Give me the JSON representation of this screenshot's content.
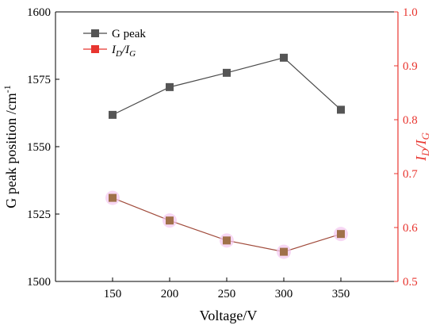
{
  "chart_data": {
    "type": "line",
    "xlabel": "Voltage/V",
    "x": [
      150,
      200,
      250,
      300,
      350
    ],
    "xlim": [
      100,
      400
    ],
    "x_ticks": [
      "150",
      "200",
      "250",
      "300",
      "350"
    ],
    "left_axis": {
      "label": "G peak position /cm",
      "label_superscript": "-1",
      "ylim": [
        1500,
        1600
      ],
      "ticks": [
        "1500",
        "1525",
        "1550",
        "1575",
        "1600"
      ],
      "color": "#000000"
    },
    "right_axis": {
      "label_main": "I",
      "label_sub1": "D",
      "label_sep": "/I",
      "label_sub2": "G",
      "ylim": [
        0.5,
        1.0
      ],
      "ticks": [
        "0.5",
        "0.6",
        "0.7",
        "0.8",
        "0.9",
        "1.0"
      ],
      "color": "#e8352f"
    },
    "series": [
      {
        "name": "G peak",
        "axis": "left",
        "values": [
          1561.8,
          1572.1,
          1577.4,
          1583.0,
          1563.7
        ],
        "marker_color": "#555555",
        "line_color": "#4a4a4a"
      },
      {
        "name_main": "I",
        "name_sub1": "D",
        "name_sep": "/I",
        "name_sub2": "G",
        "axis": "right",
        "values": [
          0.655,
          0.613,
          0.576,
          0.555,
          0.588
        ],
        "marker_color": "#a0714a",
        "line_color": "#a04a3a"
      }
    ],
    "legend_position": "top-left",
    "grid": false
  }
}
